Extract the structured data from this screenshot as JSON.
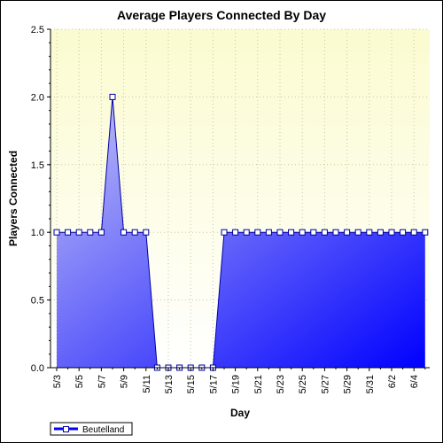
{
  "chart_data": {
    "type": "area",
    "title": "Average Players Connected By Day",
    "xlabel": "Day",
    "ylabel": "Players Connected",
    "ylim": [
      0,
      2.5
    ],
    "yticks": [
      "0.0",
      "0.5",
      "1.0",
      "1.5",
      "2.0",
      "2.5"
    ],
    "x": [
      "5/3",
      "5/4",
      "5/5",
      "5/6",
      "5/7",
      "5/8",
      "5/9",
      "5/10",
      "5/11",
      "5/12",
      "5/13",
      "5/14",
      "5/15",
      "5/16",
      "5/17",
      "5/18",
      "5/19",
      "5/20",
      "5/21",
      "5/22",
      "5/23",
      "5/24",
      "5/25",
      "5/26",
      "5/27",
      "5/28",
      "5/29",
      "5/30",
      "5/31",
      "6/1",
      "6/2",
      "6/3",
      "6/4",
      "6/5"
    ],
    "x_tick_labels": [
      "5/3",
      "5/5",
      "5/7",
      "5/9",
      "5/11",
      "5/13",
      "5/15",
      "5/17",
      "5/19",
      "5/21",
      "5/23",
      "5/25",
      "5/27",
      "5/29",
      "5/31",
      "6/2",
      "6/4"
    ],
    "series": [
      {
        "name": "Beutelland",
        "values": [
          1,
          1,
          1,
          1,
          1,
          2,
          1,
          1,
          1,
          0,
          0,
          0,
          0,
          0,
          0,
          1,
          1,
          1,
          1,
          1,
          1,
          1,
          1,
          1,
          1,
          1,
          1,
          1,
          1,
          1,
          1,
          1,
          1,
          1
        ]
      }
    ],
    "grid": true,
    "legend": "bottom-left",
    "colors": {
      "plot_bg_top": "#fbfbd0",
      "plot_bg_bottom": "#ffffff",
      "fill_start": "#c4c4f6",
      "fill_end": "#0000ff",
      "line": "#0000a0",
      "marker_fill": "#ffffff",
      "grid": "#c8c8a0"
    }
  }
}
